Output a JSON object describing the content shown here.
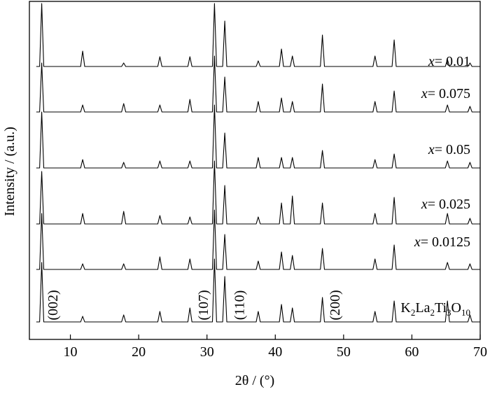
{
  "chart_data": {
    "type": "line",
    "x_label": "2θ / (°)",
    "y_label": "Intensity / (a.u.)",
    "xlim": [
      4,
      70
    ],
    "xticks": [
      10,
      20,
      30,
      40,
      50,
      60,
      70
    ],
    "color": "#000000",
    "x": [
      5,
      5.5,
      5.8,
      6.1,
      11.5,
      11.8,
      12.1,
      17.5,
      17.8,
      18.1,
      22.8,
      23.1,
      23.4,
      27.2,
      27.5,
      27.8,
      30.8,
      31.1,
      31.4,
      32.3,
      32.6,
      32.9,
      37.2,
      37.5,
      37.8,
      40.6,
      40.9,
      41.2,
      42.2,
      42.5,
      42.8,
      46.6,
      46.9,
      47.2,
      54.3,
      54.6,
      54.9,
      57.1,
      57.4,
      57.7,
      64.9,
      65.2,
      65.5,
      68.2,
      68.5,
      68.8,
      70
    ],
    "series": [
      {
        "name": "K2La2Ti3O10",
        "values": [
          0,
          0,
          85,
          0,
          0,
          8,
          0,
          0,
          10,
          0,
          0,
          15,
          0,
          0,
          20,
          0,
          0,
          90,
          0,
          0,
          65,
          0,
          0,
          15,
          0,
          0,
          25,
          0,
          0,
          20,
          0,
          0,
          35,
          0,
          0,
          15,
          0,
          0,
          30,
          0,
          0,
          30,
          0,
          0,
          10,
          0,
          0
        ]
      },
      {
        "name": "x= 0.0125",
        "values": [
          0,
          0,
          80,
          0,
          0,
          8,
          0,
          0,
          8,
          0,
          0,
          18,
          0,
          0,
          15,
          0,
          0,
          85,
          0,
          0,
          50,
          0,
          0,
          12,
          0,
          0,
          25,
          0,
          0,
          20,
          0,
          0,
          30,
          0,
          0,
          15,
          0,
          0,
          35,
          0,
          0,
          10,
          0,
          0,
          8,
          0,
          0
        ]
      },
      {
        "name": "x= 0.025",
        "values": [
          0,
          0,
          75,
          0,
          0,
          15,
          0,
          0,
          18,
          0,
          0,
          12,
          0,
          0,
          10,
          0,
          0,
          90,
          0,
          0,
          55,
          0,
          0,
          10,
          0,
          0,
          30,
          0,
          0,
          40,
          0,
          0,
          30,
          0,
          0,
          15,
          0,
          0,
          38,
          0,
          0,
          15,
          0,
          0,
          8,
          0,
          0
        ]
      },
      {
        "name": "x= 0.05",
        "values": [
          0,
          0,
          80,
          0,
          0,
          12,
          0,
          0,
          8,
          0,
          0,
          10,
          0,
          0,
          10,
          0,
          0,
          90,
          0,
          0,
          50,
          0,
          0,
          15,
          0,
          0,
          15,
          0,
          0,
          15,
          0,
          0,
          25,
          0,
          0,
          12,
          0,
          0,
          20,
          0,
          0,
          10,
          0,
          0,
          8,
          0,
          0
        ]
      },
      {
        "name": "x= 0.075",
        "values": [
          0,
          0,
          70,
          0,
          0,
          10,
          0,
          0,
          12,
          0,
          0,
          10,
          0,
          0,
          18,
          0,
          0,
          80,
          0,
          0,
          50,
          0,
          0,
          15,
          0,
          0,
          20,
          0,
          0,
          15,
          0,
          0,
          40,
          0,
          0,
          15,
          0,
          0,
          30,
          0,
          0,
          10,
          0,
          0,
          8,
          0,
          0
        ]
      },
      {
        "name": "x= 0.01",
        "values": [
          0,
          0,
          90,
          0,
          0,
          22,
          0,
          0,
          5,
          0,
          0,
          14,
          0,
          0,
          14,
          0,
          0,
          90,
          0,
          0,
          65,
          0,
          0,
          8,
          0,
          0,
          25,
          0,
          0,
          15,
          0,
          0,
          45,
          0,
          0,
          15,
          0,
          0,
          38,
          0,
          0,
          10,
          0,
          0,
          5,
          0,
          0
        ]
      }
    ],
    "annotations": [
      {
        "text": "(002)",
        "x": 7.5
      },
      {
        "text": "(107)",
        "x": 29.5
      },
      {
        "text": "(110)",
        "x": 34.8
      },
      {
        "text": "(200)",
        "x": 48.8
      }
    ]
  }
}
